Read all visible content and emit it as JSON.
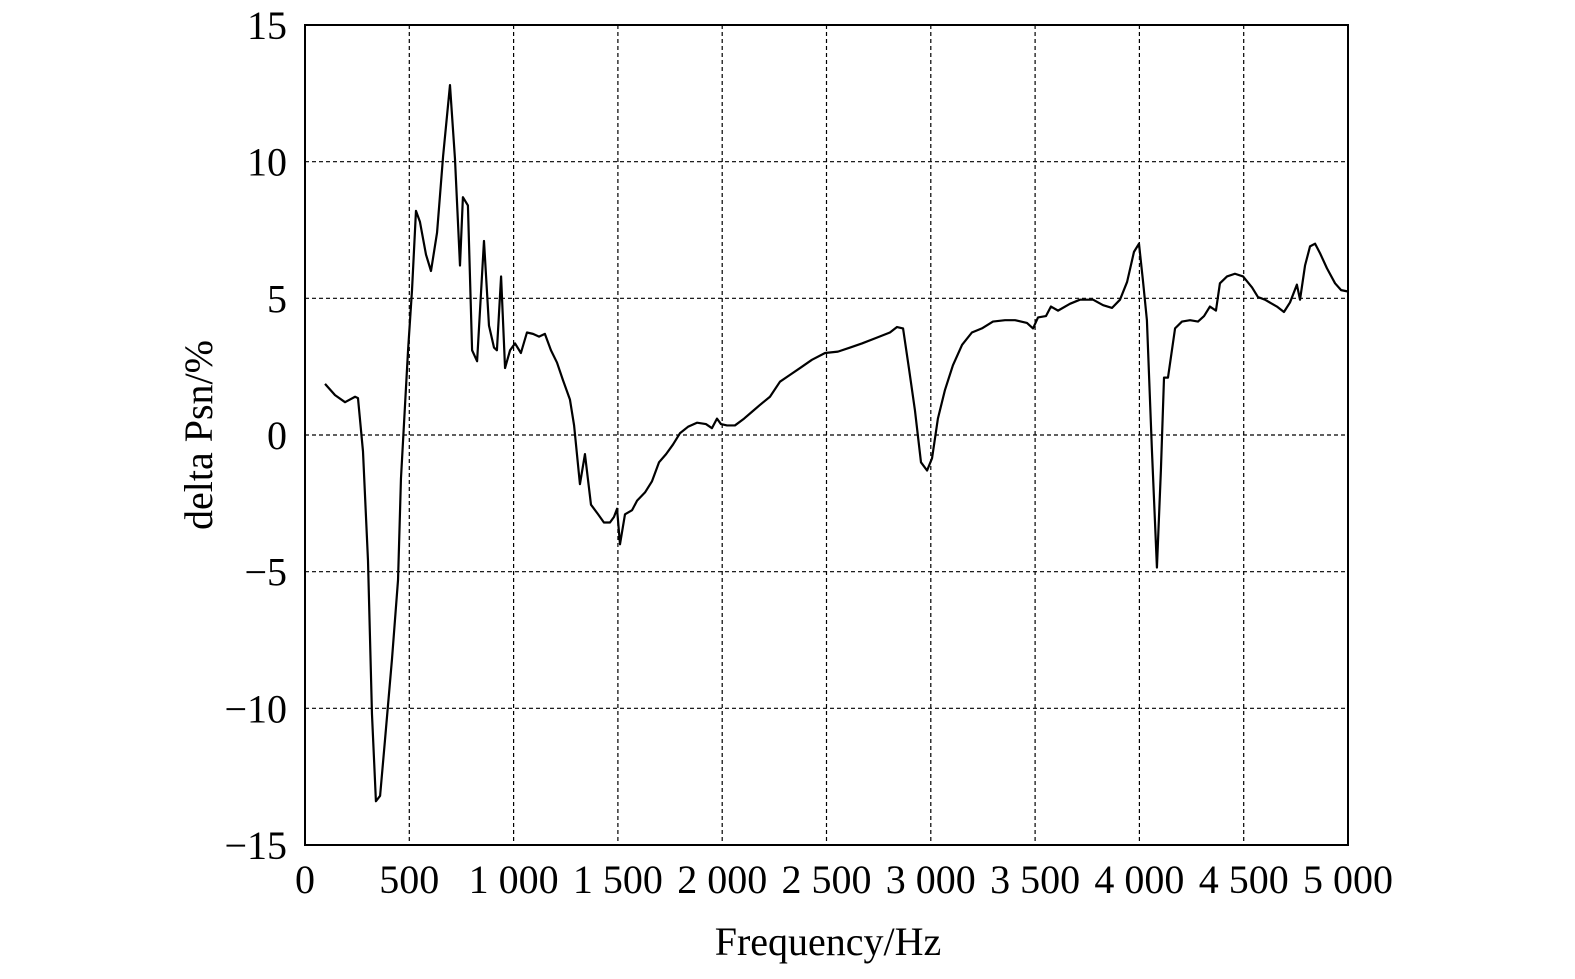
{
  "chart_data": {
    "type": "line",
    "x_label": "Frequency/Hz",
    "y_label": "delta Psn/%",
    "xlim": [
      0,
      5000
    ],
    "ylim": [
      -15,
      15
    ],
    "xticks": [
      0,
      500,
      {
        "value": 1000,
        "label": "1 000"
      },
      {
        "value": 1500,
        "label": "1 500"
      },
      {
        "value": 2000,
        "label": "2 000"
      },
      {
        "value": 2500,
        "label": "2 500"
      },
      {
        "value": 3000,
        "label": "3 000"
      },
      {
        "value": 3500,
        "label": "3 500"
      },
      {
        "value": 4000,
        "label": "4 000"
      },
      {
        "value": 4500,
        "label": "4 500"
      },
      {
        "value": 5000,
        "label": "5 000"
      }
    ],
    "yticks": [
      {
        "value": -15,
        "label": "−15"
      },
      {
        "value": -10,
        "label": "−10"
      },
      {
        "value": -5,
        "label": "−5"
      },
      0,
      5,
      10,
      15
    ],
    "grid": true,
    "series": [
      {
        "color": "#000000",
        "x": [
          96,
          144,
          192,
          240,
          254,
          278,
          302,
          321,
          340,
          360,
          383,
          417,
          446,
          460,
          494,
          513,
          532,
          551,
          580,
          604,
          633,
          662,
          695,
          719,
          743,
          757,
          781,
          801,
          825,
          858,
          882,
          906,
          920,
          940,
          959,
          983,
          1007,
          1035,
          1064,
          1093,
          1122,
          1150,
          1179,
          1208,
          1237,
          1270,
          1290,
          1318,
          1342,
          1371,
          1405,
          1433,
          1462,
          1481,
          1496,
          1510,
          1534,
          1568,
          1592,
          1630,
          1663,
          1697,
          1731,
          1764,
          1798,
          1836,
          1879,
          1922,
          1951,
          1975,
          1994,
          2023,
          2061,
          2105,
          2143,
          2181,
          2229,
          2277,
          2325,
          2373,
          2430,
          2493,
          2555,
          2613,
          2670,
          2737,
          2804,
          2838,
          2867,
          2895,
          2924,
          2953,
          2982,
          3006,
          3034,
          3068,
          3106,
          3150,
          3197,
          3245,
          3298,
          3356,
          3404,
          3461,
          3490,
          3514,
          3552,
          3576,
          3610,
          3667,
          3715,
          3778,
          3826,
          3869,
          3907,
          3941,
          3974,
          3998,
          4017,
          4036,
          4060,
          4084,
          4103,
          4118,
          4137,
          4171,
          4204,
          4243,
          4281,
          4310,
          4338,
          4367,
          4386,
          4420,
          4458,
          4497,
          4540,
          4568,
          4602,
          4636,
          4659,
          4693,
          4722,
          4755,
          4770,
          4794,
          4818,
          4842,
          4866,
          4899,
          4938,
          4967,
          5000
        ],
        "values": [
          1.87,
          1.46,
          1.2,
          1.4,
          1.35,
          -0.6,
          -4.6,
          -10.2,
          -13.4,
          -13.2,
          -11.2,
          -8.2,
          -5.3,
          -1.6,
          3.1,
          5.3,
          8.2,
          7.8,
          6.6,
          6.0,
          7.4,
          10.2,
          12.8,
          10.1,
          6.2,
          8.7,
          8.4,
          3.1,
          2.7,
          7.1,
          4.0,
          3.2,
          3.1,
          5.8,
          2.45,
          3.1,
          3.35,
          3.0,
          3.75,
          3.7,
          3.6,
          3.7,
          3.1,
          2.65,
          2.0,
          1.3,
          0.35,
          -1.8,
          -0.7,
          -2.55,
          -2.9,
          -3.2,
          -3.2,
          -3.0,
          -2.7,
          -4.0,
          -2.9,
          -2.75,
          -2.4,
          -2.1,
          -1.7,
          -1.0,
          -0.7,
          -0.35,
          0.07,
          0.3,
          0.45,
          0.4,
          0.25,
          0.6,
          0.4,
          0.35,
          0.35,
          0.6,
          0.85,
          1.1,
          1.4,
          1.95,
          2.2,
          2.45,
          2.75,
          3.0,
          3.05,
          3.2,
          3.35,
          3.55,
          3.75,
          3.95,
          3.9,
          2.45,
          0.9,
          -1.0,
          -1.3,
          -0.85,
          0.6,
          1.65,
          2.55,
          3.3,
          3.75,
          3.9,
          4.15,
          4.2,
          4.2,
          4.1,
          3.9,
          4.3,
          4.35,
          4.7,
          4.55,
          4.8,
          4.95,
          4.95,
          4.75,
          4.65,
          4.95,
          5.6,
          6.7,
          7.0,
          5.65,
          4.2,
          -0.55,
          -4.85,
          -1.3,
          2.1,
          2.1,
          3.9,
          4.15,
          4.2,
          4.15,
          4.35,
          4.7,
          4.55,
          5.55,
          5.8,
          5.9,
          5.8,
          5.4,
          5.05,
          4.95,
          4.8,
          4.7,
          4.5,
          4.85,
          5.5,
          4.95,
          6.2,
          6.9,
          7.0,
          6.65,
          6.1,
          5.55,
          5.3,
          5.25
        ]
      }
    ]
  }
}
